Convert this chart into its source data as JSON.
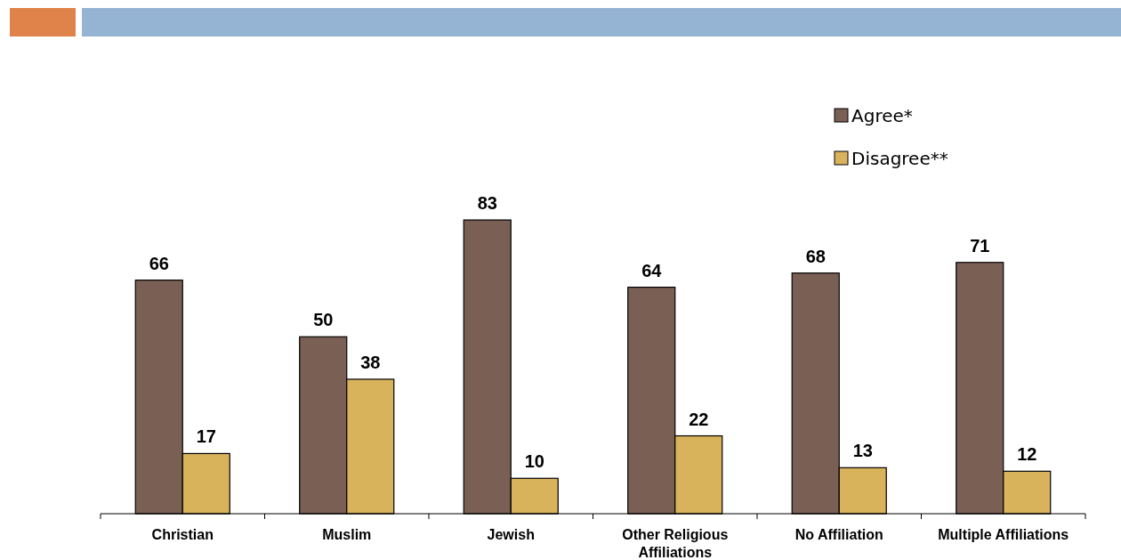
{
  "chart_data": {
    "type": "bar",
    "categories": [
      "Christian",
      "Muslim",
      "Jewish",
      "Other Religious Affiliations",
      "No Affiliation",
      "Multiple Affiliations"
    ],
    "series": [
      {
        "name": "Agree*",
        "color": "#7a5f55",
        "values": [
          66,
          50,
          83,
          64,
          68,
          71
        ]
      },
      {
        "name": "Disagree**",
        "color": "#d9b25c",
        "values": [
          17,
          38,
          10,
          22,
          13,
          12
        ]
      }
    ],
    "data_labels": true,
    "legend": "top right"
  }
}
